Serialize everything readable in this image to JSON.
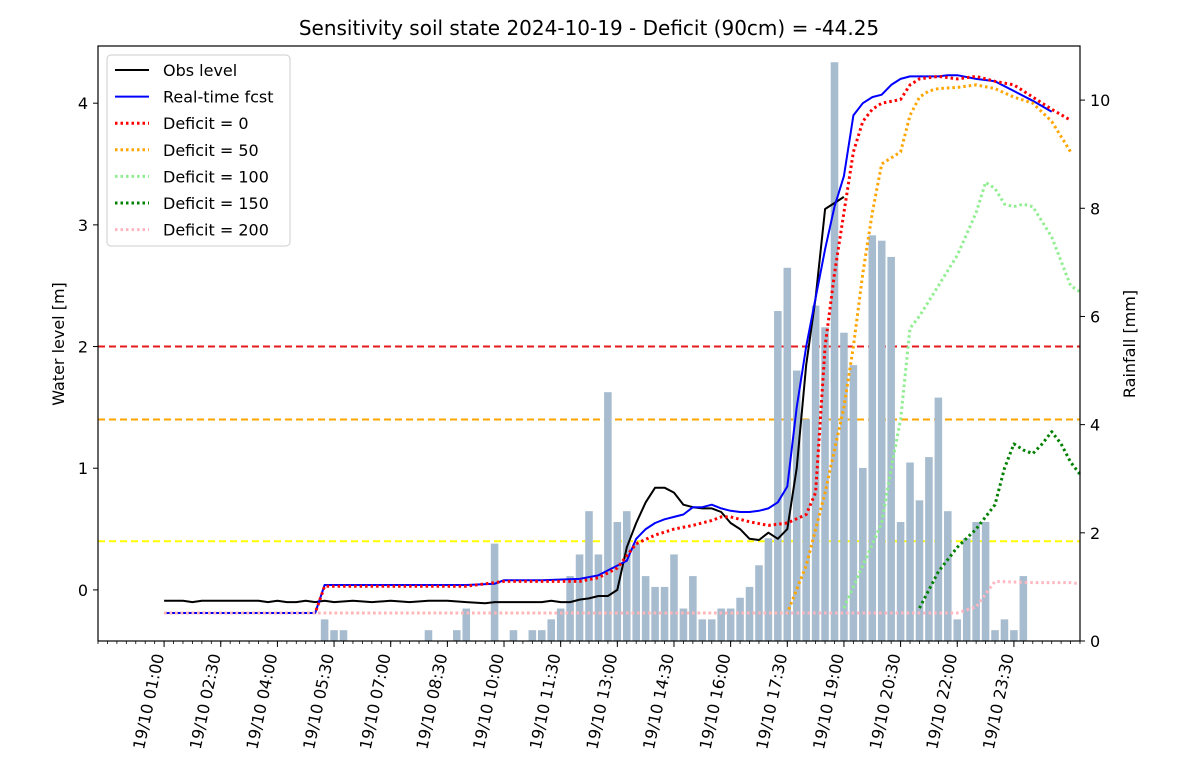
{
  "chart_data": {
    "type": "line",
    "title": "Sensitivity soil state  2024-10-19 - Deficit (90cm) = -44.25",
    "ylabel": "Water level [m]",
    "y2label": "Rainfall [mm]",
    "xlabel": "",
    "ylim": [
      -0.42,
      4.47
    ],
    "y2lim": [
      0,
      11
    ],
    "yticks": [
      0,
      1,
      2,
      3,
      4
    ],
    "y2ticks": [
      0,
      2,
      4,
      6,
      8,
      10
    ],
    "x_range_hours": [
      -0.75,
      25.25
    ],
    "xticks": [
      {
        "label": "19/10 01:00",
        "hour": 1
      },
      {
        "label": "19/10 02:30",
        "hour": 2.5
      },
      {
        "label": "19/10 04:00",
        "hour": 4
      },
      {
        "label": "19/10 05:30",
        "hour": 5.5
      },
      {
        "label": "19/10 07:00",
        "hour": 7
      },
      {
        "label": "19/10 08:30",
        "hour": 8.5
      },
      {
        "label": "19/10 10:00",
        "hour": 10
      },
      {
        "label": "19/10 11:30",
        "hour": 11.5
      },
      {
        "label": "19/10 13:00",
        "hour": 13
      },
      {
        "label": "19/10 14:30",
        "hour": 14.5
      },
      {
        "label": "19/10 16:00",
        "hour": 16
      },
      {
        "label": "19/10 17:30",
        "hour": 17.5
      },
      {
        "label": "19/10 19:00",
        "hour": 19
      },
      {
        "label": "19/10 20:30",
        "hour": 20.5
      },
      {
        "label": "19/10 22:00",
        "hour": 22
      },
      {
        "label": "19/10 23:30",
        "hour": 23.5
      }
    ],
    "thresholds": [
      {
        "y": 2.0,
        "color": "#e41a1c"
      },
      {
        "y": 1.4,
        "color": "#ffa500"
      },
      {
        "y": 0.4,
        "color": "#ffff00"
      }
    ],
    "legend_position": "top-left",
    "rainfall": {
      "color": "#a7bccf",
      "bar_width_hours": 0.2,
      "hours": [
        5.25,
        5.5,
        5.75,
        8,
        8.75,
        9,
        9.75,
        10.25,
        10.75,
        11,
        11.25,
        11.5,
        11.75,
        12,
        12.25,
        12.5,
        12.75,
        13,
        13.25,
        13.5,
        13.75,
        14,
        14.25,
        14.5,
        14.75,
        15,
        15.25,
        15.5,
        15.75,
        16,
        16.25,
        16.5,
        16.75,
        17,
        17.25,
        17.5,
        17.75,
        18,
        18.25,
        18.5,
        18.75,
        19,
        19.25,
        19.5,
        19.75,
        20,
        20.25,
        20.5,
        20.75,
        21,
        21.25,
        21.5,
        21.75,
        22,
        22.25,
        22.5,
        22.75,
        23,
        23.25,
        23.5,
        23.75
      ],
      "values": [
        0.4,
        0.2,
        0.2,
        0.2,
        0.2,
        0.6,
        1.8,
        0.2,
        0.2,
        0.2,
        0.4,
        0.6,
        1.2,
        1.6,
        2.4,
        1.6,
        4.6,
        2.2,
        2.4,
        1.8,
        1.2,
        1.0,
        1.0,
        1.6,
        0.6,
        1.2,
        0.4,
        0.4,
        0.6,
        0.6,
        0.8,
        1.0,
        1.4,
        1.9,
        6.1,
        6.9,
        5.0,
        4.1,
        6.2,
        5.8,
        10.7,
        5.7,
        5.1,
        3.2,
        7.5,
        7.4,
        7.1,
        2.2,
        3.3,
        2.6,
        3.4,
        4.5,
        2.4,
        0.4,
        1.9,
        2.2,
        2.2,
        0.2,
        0.4,
        0.2,
        1.2
      ]
    },
    "series": [
      {
        "name": "Obs level",
        "color": "#000000",
        "style": "solid",
        "points": [
          [
            1,
            -0.09
          ],
          [
            1.5,
            -0.09
          ],
          [
            1.75,
            -0.1
          ],
          [
            2,
            -0.09
          ],
          [
            3,
            -0.09
          ],
          [
            3.5,
            -0.09
          ],
          [
            3.75,
            -0.1
          ],
          [
            4,
            -0.09
          ],
          [
            4.25,
            -0.1
          ],
          [
            4.5,
            -0.1
          ],
          [
            4.75,
            -0.09
          ],
          [
            5,
            -0.1
          ],
          [
            5.25,
            -0.09
          ],
          [
            5.5,
            -0.1
          ],
          [
            6,
            -0.09
          ],
          [
            6.5,
            -0.1
          ],
          [
            7,
            -0.09
          ],
          [
            7.5,
            -0.1
          ],
          [
            8,
            -0.09
          ],
          [
            8.5,
            -0.09
          ],
          [
            9,
            -0.1
          ],
          [
            9.5,
            -0.11
          ],
          [
            9.75,
            -0.1
          ],
          [
            10,
            -0.1
          ],
          [
            10.5,
            -0.1
          ],
          [
            11,
            -0.1
          ],
          [
            11.25,
            -0.09
          ],
          [
            11.5,
            -0.1
          ],
          [
            11.75,
            -0.1
          ],
          [
            12,
            -0.08
          ],
          [
            12.25,
            -0.07
          ],
          [
            12.5,
            -0.05
          ],
          [
            12.75,
            -0.05
          ],
          [
            13,
            0.0
          ],
          [
            13.25,
            0.35
          ],
          [
            13.5,
            0.55
          ],
          [
            13.75,
            0.72
          ],
          [
            14,
            0.84
          ],
          [
            14.25,
            0.84
          ],
          [
            14.5,
            0.8
          ],
          [
            14.75,
            0.7
          ],
          [
            15,
            0.68
          ],
          [
            15.25,
            0.67
          ],
          [
            15.5,
            0.67
          ],
          [
            15.75,
            0.64
          ],
          [
            16,
            0.55
          ],
          [
            16.25,
            0.5
          ],
          [
            16.5,
            0.42
          ],
          [
            16.75,
            0.41
          ],
          [
            17,
            0.47
          ],
          [
            17.25,
            0.42
          ],
          [
            17.5,
            0.5
          ],
          [
            17.75,
            1.0
          ],
          [
            18,
            1.85
          ],
          [
            18.25,
            2.4
          ],
          [
            18.5,
            3.13
          ],
          [
            18.75,
            3.18
          ],
          [
            19,
            3.23
          ]
        ]
      },
      {
        "name": "Real-time fcst",
        "color": "#0000ff",
        "style": "solid",
        "points": [
          [
            1,
            -0.19
          ],
          [
            5,
            -0.19
          ],
          [
            5.25,
            0.04
          ],
          [
            6,
            0.04
          ],
          [
            9,
            0.04
          ],
          [
            9.75,
            0.05
          ],
          [
            10,
            0.08
          ],
          [
            11,
            0.08
          ],
          [
            12,
            0.09
          ],
          [
            12.5,
            0.12
          ],
          [
            12.75,
            0.16
          ],
          [
            13,
            0.2
          ],
          [
            13.25,
            0.24
          ],
          [
            13.5,
            0.42
          ],
          [
            13.75,
            0.5
          ],
          [
            14,
            0.55
          ],
          [
            14.25,
            0.58
          ],
          [
            14.5,
            0.6
          ],
          [
            14.75,
            0.62
          ],
          [
            15,
            0.68
          ],
          [
            15.25,
            0.68
          ],
          [
            15.5,
            0.7
          ],
          [
            15.75,
            0.67
          ],
          [
            16,
            0.65
          ],
          [
            16.25,
            0.64
          ],
          [
            16.5,
            0.64
          ],
          [
            16.75,
            0.65
          ],
          [
            17,
            0.67
          ],
          [
            17.25,
            0.72
          ],
          [
            17.5,
            0.85
          ],
          [
            17.75,
            1.5
          ],
          [
            18,
            2.0
          ],
          [
            18.25,
            2.4
          ],
          [
            18.5,
            2.8
          ],
          [
            18.75,
            3.15
          ],
          [
            19,
            3.4
          ],
          [
            19.25,
            3.9
          ],
          [
            19.5,
            4.0
          ],
          [
            19.75,
            4.05
          ],
          [
            20,
            4.07
          ],
          [
            20.25,
            4.15
          ],
          [
            20.5,
            4.2
          ],
          [
            20.75,
            4.22
          ],
          [
            21,
            4.22
          ],
          [
            21.5,
            4.22
          ],
          [
            21.75,
            4.23
          ],
          [
            22,
            4.23
          ],
          [
            22.5,
            4.2
          ],
          [
            23,
            4.18
          ],
          [
            23.5,
            4.1
          ],
          [
            24,
            4.02
          ],
          [
            24.5,
            3.93
          ]
        ]
      },
      {
        "name": "Deficit = 0",
        "color": "#ff0000",
        "style": "dotted",
        "points": [
          [
            1,
            -0.19
          ],
          [
            5,
            -0.19
          ],
          [
            5.25,
            0.03
          ],
          [
            9,
            0.03
          ],
          [
            10,
            0.07
          ],
          [
            12,
            0.07
          ],
          [
            12.5,
            0.1
          ],
          [
            13,
            0.18
          ],
          [
            13.5,
            0.38
          ],
          [
            14,
            0.45
          ],
          [
            14.5,
            0.5
          ],
          [
            15,
            0.53
          ],
          [
            15.5,
            0.57
          ],
          [
            15.75,
            0.6
          ],
          [
            16,
            0.6
          ],
          [
            16.5,
            0.56
          ],
          [
            17,
            0.53
          ],
          [
            17.5,
            0.55
          ],
          [
            18,
            0.62
          ],
          [
            18.25,
            0.8
          ],
          [
            18.5,
            2.0
          ],
          [
            18.75,
            2.6
          ],
          [
            19,
            3.1
          ],
          [
            19.25,
            3.6
          ],
          [
            19.5,
            3.85
          ],
          [
            19.75,
            3.95
          ],
          [
            20,
            4.0
          ],
          [
            20.5,
            4.03
          ],
          [
            20.75,
            4.15
          ],
          [
            21,
            4.2
          ],
          [
            21.5,
            4.22
          ],
          [
            22,
            4.2
          ],
          [
            22.5,
            4.22
          ],
          [
            23,
            4.18
          ],
          [
            23.5,
            4.15
          ],
          [
            24,
            4.05
          ],
          [
            24.5,
            3.95
          ],
          [
            25,
            3.86
          ]
        ]
      },
      {
        "name": "Deficit = 50",
        "color": "#ffa500",
        "style": "dotted",
        "points": [
          [
            1,
            -0.19
          ],
          [
            17.5,
            -0.19
          ],
          [
            18,
            0.2
          ],
          [
            18.5,
            0.8
          ],
          [
            19,
            1.5
          ],
          [
            19.25,
            2.0
          ],
          [
            19.5,
            2.6
          ],
          [
            19.75,
            3.1
          ],
          [
            20,
            3.5
          ],
          [
            20.25,
            3.55
          ],
          [
            20.5,
            3.6
          ],
          [
            20.75,
            3.9
          ],
          [
            21,
            4.05
          ],
          [
            21.25,
            4.1
          ],
          [
            21.5,
            4.12
          ],
          [
            22,
            4.13
          ],
          [
            22.5,
            4.15
          ],
          [
            23,
            4.12
          ],
          [
            23.5,
            4.05
          ],
          [
            24,
            4.0
          ],
          [
            24.5,
            3.85
          ],
          [
            25,
            3.6
          ]
        ]
      },
      {
        "name": "Deficit = 100",
        "color": "#90ee90",
        "style": "dotted",
        "points": [
          [
            19,
            -0.15
          ],
          [
            19.5,
            0.2
          ],
          [
            20,
            0.55
          ],
          [
            20.25,
            1.0
          ],
          [
            20.5,
            1.4
          ],
          [
            20.75,
            2.15
          ],
          [
            21,
            2.25
          ],
          [
            21.5,
            2.5
          ],
          [
            22,
            2.75
          ],
          [
            22.5,
            3.1
          ],
          [
            22.75,
            3.35
          ],
          [
            23,
            3.3
          ],
          [
            23.25,
            3.17
          ],
          [
            23.5,
            3.15
          ],
          [
            23.75,
            3.17
          ],
          [
            24,
            3.15
          ],
          [
            24.5,
            2.9
          ],
          [
            25,
            2.5
          ],
          [
            25.25,
            2.45
          ]
        ]
      },
      {
        "name": "Deficit = 150",
        "color": "#008000",
        "style": "dotted",
        "points": [
          [
            21,
            -0.15
          ],
          [
            21.25,
            0.0
          ],
          [
            21.5,
            0.15
          ],
          [
            22,
            0.35
          ],
          [
            22.5,
            0.5
          ],
          [
            23,
            0.7
          ],
          [
            23.25,
            1.0
          ],
          [
            23.5,
            1.2
          ],
          [
            23.75,
            1.15
          ],
          [
            24,
            1.12
          ],
          [
            24.25,
            1.2
          ],
          [
            24.5,
            1.3
          ],
          [
            24.75,
            1.2
          ],
          [
            25,
            1.05
          ],
          [
            25.25,
            0.95
          ]
        ]
      },
      {
        "name": "Deficit = 200",
        "color": "#ffb6c1",
        "style": "dotted",
        "points": [
          [
            1,
            -0.19
          ],
          [
            22,
            -0.19
          ],
          [
            22.5,
            -0.14
          ],
          [
            23,
            0.07
          ],
          [
            24,
            0.06
          ],
          [
            25,
            0.06
          ],
          [
            25.25,
            0.05
          ]
        ]
      }
    ]
  }
}
